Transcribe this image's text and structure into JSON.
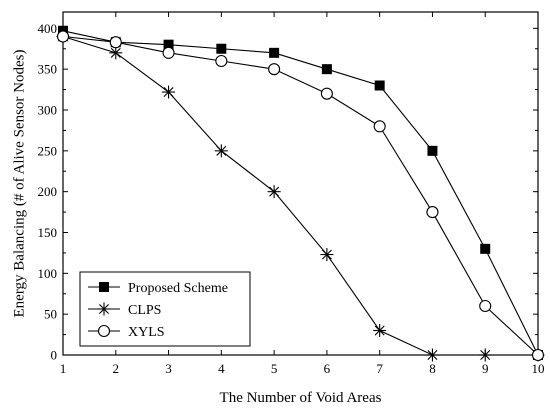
{
  "chart_data": {
    "type": "line",
    "title": "",
    "xlabel": "The Number of Void Areas",
    "ylabel": "Energy Balancing (# of Alive Sensor Nodes)",
    "x": [
      1,
      2,
      3,
      4,
      5,
      6,
      7,
      8,
      9,
      10
    ],
    "xlim": [
      1,
      10
    ],
    "ylim": [
      0,
      420
    ],
    "xticks": [
      "1",
      "2",
      "3",
      "4",
      "5",
      "6",
      "7",
      "8",
      "9",
      "10"
    ],
    "yticks": [
      "0",
      "50",
      "100",
      "150",
      "200",
      "250",
      "300",
      "350",
      "400"
    ],
    "grid": false,
    "legend_position": "bottom-left",
    "series": [
      {
        "name": "Proposed Scheme",
        "marker": "filled-square",
        "values": [
          397,
          383,
          380,
          375,
          370,
          350,
          330,
          250,
          130,
          0
        ]
      },
      {
        "name": "CLPS",
        "marker": "asterisk",
        "values": [
          390,
          370,
          322,
          250,
          200,
          123,
          30,
          0,
          0,
          0
        ]
      },
      {
        "name": "XYLS",
        "marker": "open-circle",
        "values": [
          390,
          383,
          370,
          360,
          350,
          320,
          280,
          175,
          60,
          0
        ]
      }
    ]
  }
}
